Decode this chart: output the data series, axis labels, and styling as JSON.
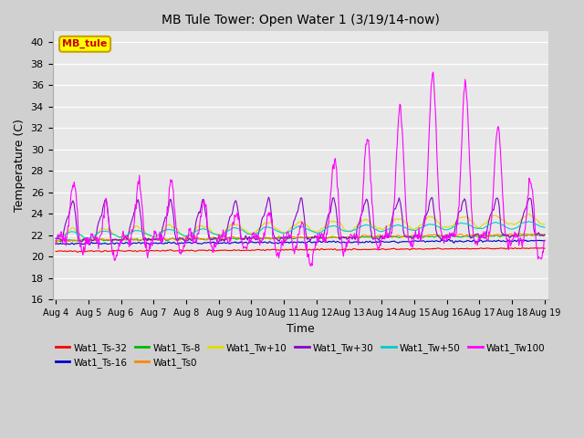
{
  "title": "MB Tule Tower: Open Water 1 (3/19/14-now)",
  "xlabel": "Time",
  "ylabel": "Temperature (C)",
  "ylim": [
    16,
    41
  ],
  "yticks": [
    16,
    18,
    20,
    22,
    24,
    26,
    28,
    30,
    32,
    34,
    36,
    38,
    40
  ],
  "bg_color": "#e8e8e8",
  "grid_color": "white",
  "legend_box_facecolor": "#ffff00",
  "legend_box_edge": "#c8a000",
  "mb_tule_text_color": "#cc0000",
  "series": [
    {
      "label": "Wat1_Ts-32",
      "color": "#ff0000"
    },
    {
      "label": "Wat1_Ts-16",
      "color": "#0000cc"
    },
    {
      "label": "Wat1_Ts-8",
      "color": "#00bb00"
    },
    {
      "label": "Wat1_Ts0",
      "color": "#ff8800"
    },
    {
      "label": "Wat1_Tw+10",
      "color": "#dddd00"
    },
    {
      "label": "Wat1_Tw+30",
      "color": "#8800cc"
    },
    {
      "label": "Wat1_Tw+50",
      "color": "#00cccc"
    },
    {
      "label": "Wat1_Tw100",
      "color": "#ff00ff"
    }
  ],
  "xtick_labels": [
    "Aug 4",
    "Aug 5",
    "Aug 6",
    "Aug 7",
    "Aug 8",
    "Aug 9",
    "Aug 10",
    "Aug 11",
    "Aug 12",
    "Aug 13",
    "Aug 14",
    "Aug 15",
    "Aug 16",
    "Aug 17",
    "Aug 18",
    "Aug 19"
  ],
  "n_days": 15,
  "pts_per_day": 48
}
